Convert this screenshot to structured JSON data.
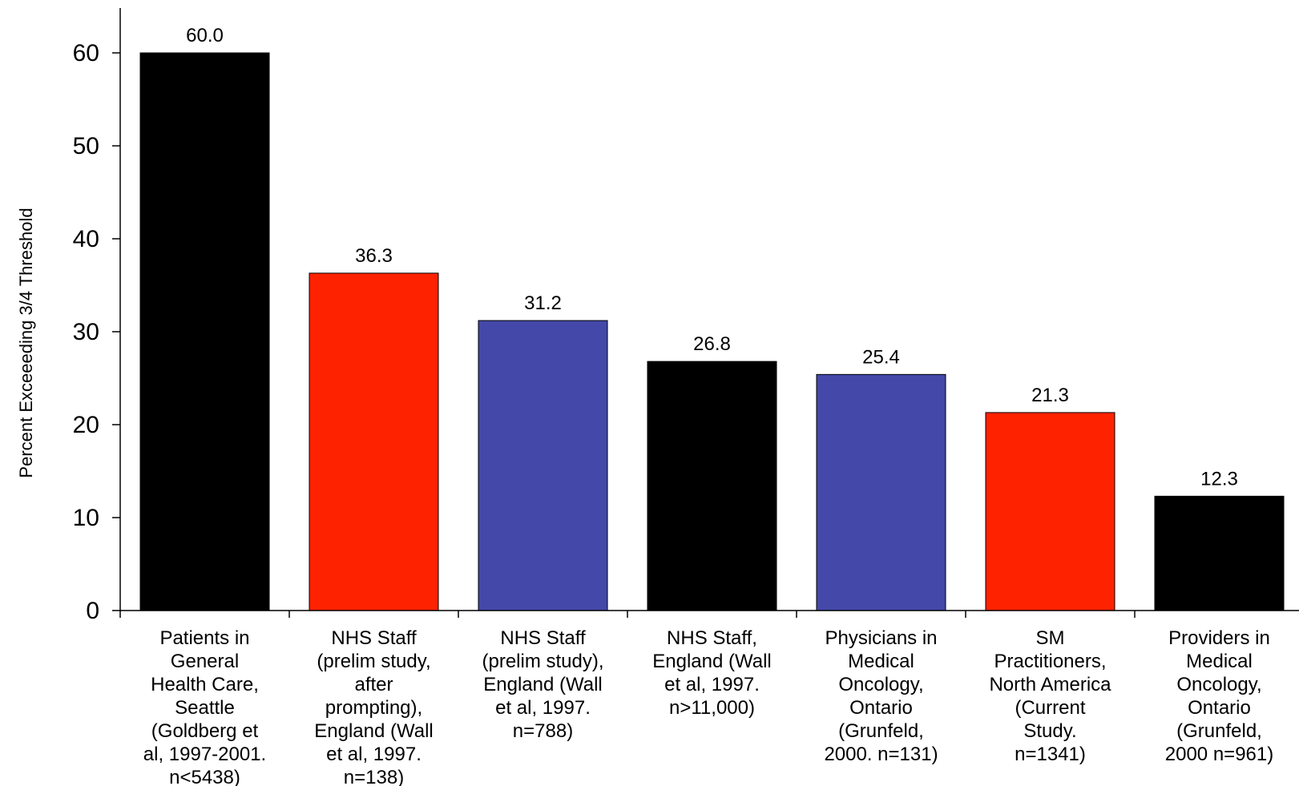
{
  "chart_data": {
    "type": "bar",
    "title": "",
    "xlabel": "",
    "ylabel": "Percent Exceeeding 3/4 Threshold",
    "ylim": [
      0,
      65
    ],
    "yticks": [
      0,
      10,
      20,
      30,
      40,
      50,
      60
    ],
    "grid": false,
    "legend": "none",
    "categories": [
      [
        "Patients in",
        "General",
        "Health Care,",
        "Seattle",
        "(Goldberg et",
        "al, 1997-2001.",
        "n<5438)"
      ],
      [
        "NHS Staff",
        "(prelim study,",
        "after",
        "prompting),",
        "England (Wall",
        "et al, 1997.",
        "n=138)"
      ],
      [
        "NHS Staff",
        "(prelim study),",
        "England (Wall",
        "et al, 1997.",
        "n=788)"
      ],
      [
        "NHS Staff,",
        "England (Wall",
        "et al, 1997.",
        "n>11,000)"
      ],
      [
        "Physicians in",
        "Medical",
        "Oncology,",
        "Ontario",
        "(Grunfeld,",
        "2000. n=131)"
      ],
      [
        "SM",
        "Practitioners,",
        "North America",
        "(Current",
        "Study.",
        "n=1341)"
      ],
      [
        "Providers in",
        "Medical",
        "Oncology,",
        "Ontario",
        "(Grunfeld,",
        "2000 n=961)"
      ]
    ],
    "values": [
      60.0,
      36.3,
      31.2,
      26.8,
      25.4,
      21.3,
      12.3
    ],
    "value_labels": [
      "60.0",
      "36.3",
      "31.2",
      "26.8",
      "25.4",
      "21.3",
      "12.3"
    ],
    "colors": [
      "#000000",
      "#ff2200",
      "#4448a8",
      "#000000",
      "#4448a8",
      "#ff2200",
      "#000000"
    ]
  }
}
